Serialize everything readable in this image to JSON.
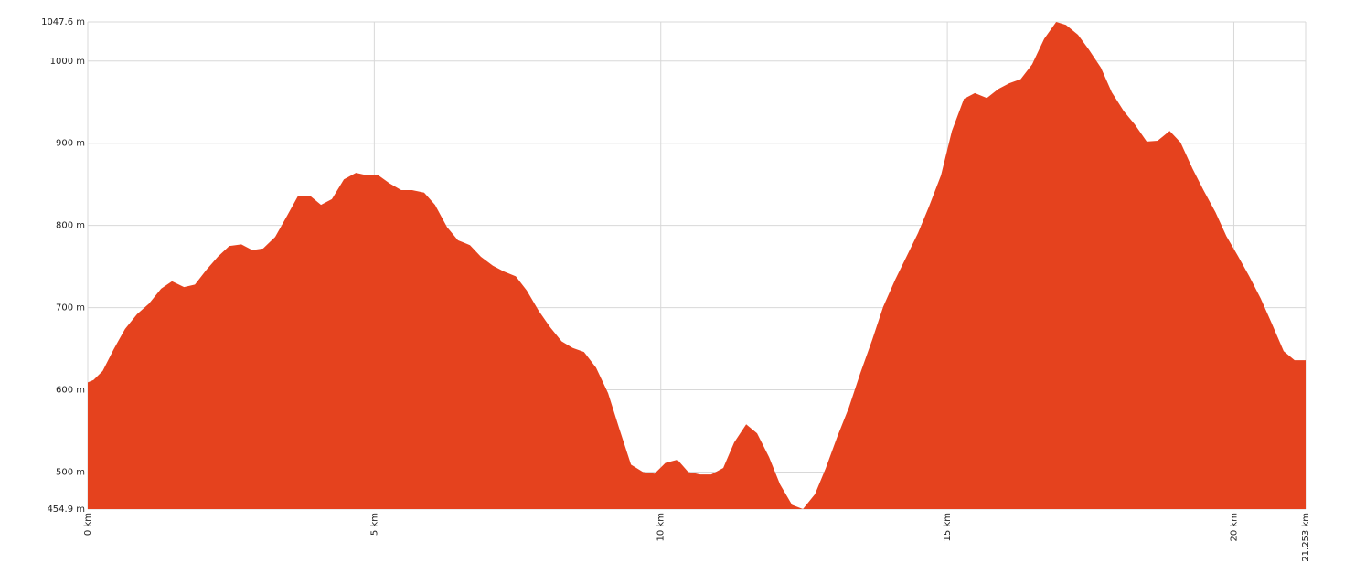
{
  "chart_data": {
    "type": "area",
    "color": "#e5421e",
    "grid": true,
    "x": [
      0,
      0.1,
      0.26,
      0.45,
      0.65,
      0.86,
      1.07,
      1.28,
      1.47,
      1.68,
      1.87,
      2.07,
      2.27,
      2.47,
      2.68,
      2.87,
      3.06,
      3.27,
      3.48,
      3.67,
      3.88,
      4.07,
      4.26,
      4.47,
      4.68,
      4.87,
      5.07,
      5.27,
      5.47,
      5.66,
      5.87,
      6.06,
      6.27,
      6.46,
      6.67,
      6.86,
      7.07,
      7.26,
      7.47,
      7.66,
      7.87,
      8.07,
      8.27,
      8.46,
      8.66,
      8.87,
      9.08,
      9.27,
      9.48,
      9.69,
      9.89,
      10.08,
      10.29,
      10.48,
      10.69,
      10.88,
      11.09,
      11.28,
      11.49,
      11.68,
      11.89,
      12.08,
      12.29,
      12.48,
      12.69,
      12.88,
      13.08,
      13.28,
      13.48,
      13.69,
      13.88,
      14.09,
      14.28,
      14.49,
      14.68,
      14.89,
      15.08,
      15.29,
      15.48,
      15.69,
      15.89,
      16.08,
      16.28,
      16.48,
      16.69,
      16.9,
      17.07,
      17.28,
      17.47,
      17.68,
      17.87,
      18.08,
      18.27,
      18.48,
      18.67,
      18.88,
      19.07,
      19.28,
      19.47,
      19.68,
      19.87,
      20.07,
      20.27,
      20.47,
      20.66,
      20.87,
      21.06,
      21.253
    ],
    "values": [
      609,
      612,
      623,
      649,
      674,
      692,
      705,
      723,
      732,
      725,
      728,
      746,
      762,
      775,
      777,
      770,
      772,
      786,
      812,
      836,
      836,
      825,
      832,
      856,
      864,
      861,
      861,
      851,
      843,
      843,
      840,
      825,
      798,
      782,
      776,
      762,
      751,
      744,
      738,
      721,
      696,
      676,
      659,
      651,
      646,
      627,
      596,
      554,
      509,
      500,
      498,
      511,
      515,
      500,
      497,
      497,
      505,
      536,
      558,
      547,
      518,
      485,
      460,
      454.9,
      473,
      505,
      543,
      578,
      620,
      661,
      701,
      734,
      761,
      791,
      823,
      861,
      915,
      954,
      961,
      955,
      966,
      973,
      978,
      996,
      1027,
      1047.6,
      1044,
      1032,
      1014,
      992,
      962,
      939,
      923,
      902,
      903,
      915,
      901,
      869,
      843,
      816,
      787,
      763,
      738,
      711,
      681,
      647,
      636,
      636
    ],
    "xlim": [
      0,
      21.253
    ],
    "ylim": [
      454.9,
      1047.6
    ],
    "xticks": [
      {
        "value": 0,
        "label": "0 km"
      },
      {
        "value": 5,
        "label": "5 km"
      },
      {
        "value": 10,
        "label": "10 km"
      },
      {
        "value": 15,
        "label": "15 km"
      },
      {
        "value": 20,
        "label": "20 km"
      },
      {
        "value": 21.253,
        "label": "21.253 km"
      }
    ],
    "yticks": [
      {
        "value": 454.9,
        "label": "454.9 m"
      },
      {
        "value": 500,
        "label": "500 m"
      },
      {
        "value": 600,
        "label": "600 m"
      },
      {
        "value": 700,
        "label": "700 m"
      },
      {
        "value": 800,
        "label": "800 m"
      },
      {
        "value": 900,
        "label": "900 m"
      },
      {
        "value": 1000,
        "label": "1000 m"
      },
      {
        "value": 1047.6,
        "label": "1047.6 m"
      }
    ]
  }
}
